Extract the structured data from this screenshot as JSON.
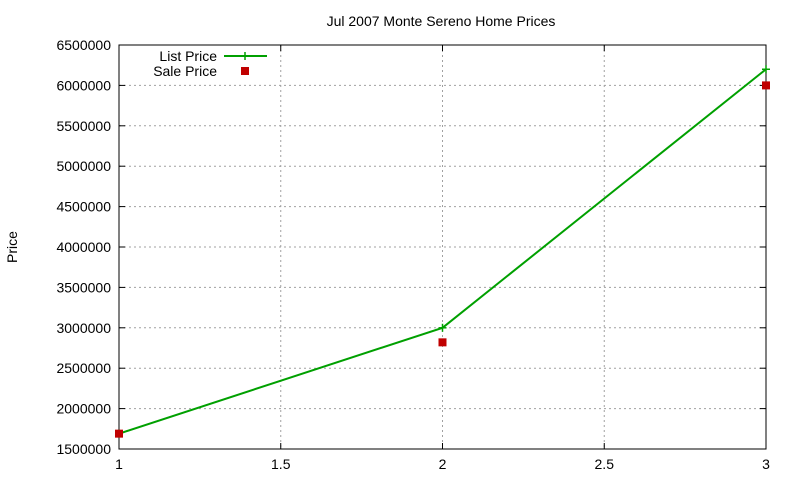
{
  "chart_data": {
    "type": "line",
    "title": "Jul 2007 Monte Sereno Home Prices",
    "xlabel": "",
    "ylabel": "Price",
    "xlim": [
      1,
      3
    ],
    "ylim": [
      1500000,
      6500000
    ],
    "x_ticks": [
      "1",
      "1.5",
      "2",
      "2.5",
      "3"
    ],
    "y_ticks": [
      "1500000",
      "2000000",
      "2500000",
      "3000000",
      "3500000",
      "4000000",
      "4500000",
      "5000000",
      "5500000",
      "6000000",
      "6500000"
    ],
    "grid": true,
    "legend_position": "top-left",
    "series": [
      {
        "name": "List Price",
        "style": "line+cross",
        "color": "#00a000",
        "points": [
          {
            "x": 1,
            "y": 1690000
          },
          {
            "x": 2,
            "y": 3000000
          },
          {
            "x": 3,
            "y": 6200000
          }
        ]
      },
      {
        "name": "Sale Price",
        "style": "square",
        "color": "#c00000",
        "points": [
          {
            "x": 1,
            "y": 1690000
          },
          {
            "x": 2,
            "y": 2820000
          },
          {
            "x": 3,
            "y": 6000000
          }
        ]
      }
    ]
  }
}
